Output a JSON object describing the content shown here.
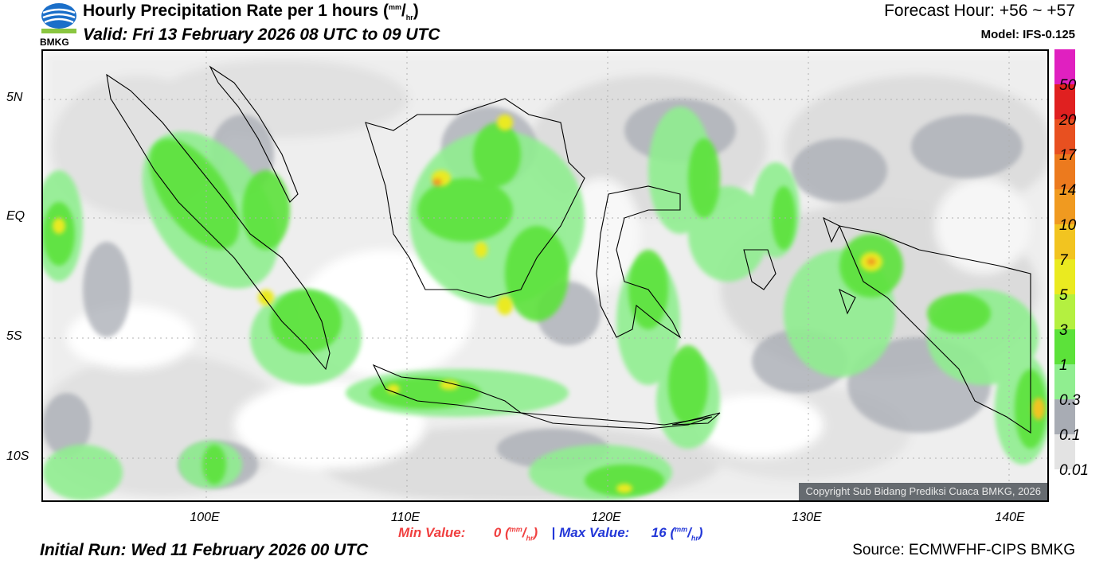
{
  "header": {
    "logo_text": "BMKG",
    "title": "Hourly Precipitation Rate per 1 hours",
    "title_unit_num": "mm",
    "title_unit_den": "hr",
    "valid": "Valid: Fri 13 February 2026 08 UTC to 09 UTC",
    "forecast": "Forecast Hour: +56 ~ +57",
    "model": "Model: IFS-0.125"
  },
  "map": {
    "lat_labels": [
      "5N",
      "EQ",
      "5S",
      "10S"
    ],
    "lon_labels": [
      "100E",
      "110E",
      "120E",
      "130E",
      "140E"
    ],
    "copyright": "Copyright Sub Bidang Prediksi Cuaca BMKG, 2026"
  },
  "legend": {
    "levels": [
      "50",
      "20",
      "17",
      "14",
      "10",
      "7",
      "5",
      "3",
      "1",
      "0.3",
      "0.1",
      "0.01"
    ],
    "colors": [
      "#e020c0",
      "#e02020",
      "#e85020",
      "#ec7a1e",
      "#f09a20",
      "#f2c420",
      "#eaea20",
      "#b4f040",
      "#5ce23a",
      "#90ee90",
      "#a8acb4",
      "#e3e3e3"
    ]
  },
  "footer": {
    "min_label": "Min Value:",
    "min_value": "0",
    "max_label": "Max Value:",
    "max_value": "16",
    "unit_num": "mm",
    "unit_den": "hr",
    "separator": "|",
    "initial_run": "Initial Run: Wed 11 February 2026 00 UTC",
    "source": "Source: ECMWFHF-CIPS BMKG"
  }
}
